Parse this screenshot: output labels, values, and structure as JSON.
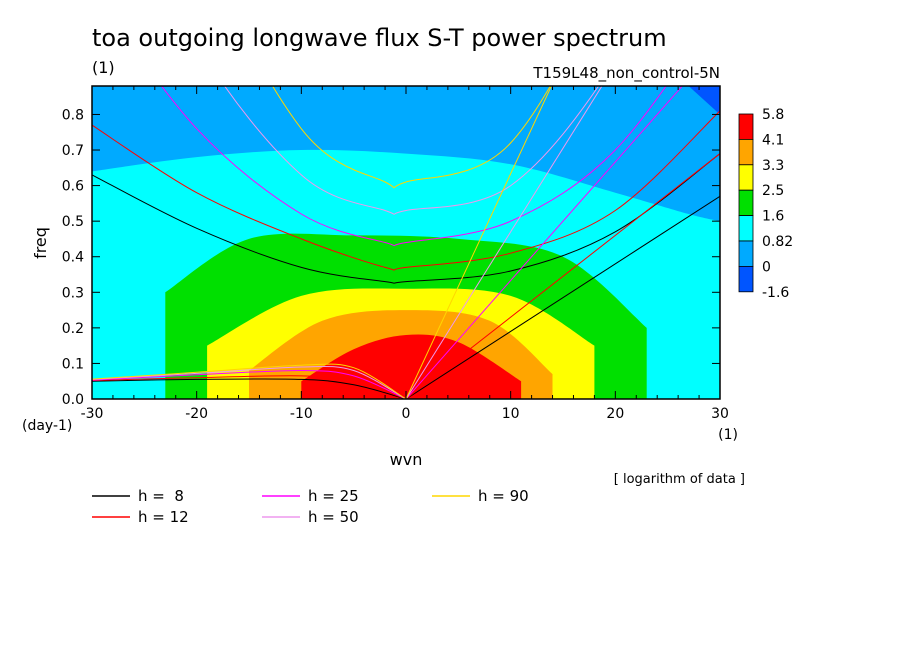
{
  "chart_data": {
    "type": "heatmap",
    "title": "toa outgoing longwave flux S-T power spectrum",
    "subtitle_left": "(1)",
    "subtitle_right": "T159L48_non_control-5N",
    "xlabel": "wvn",
    "ylabel": "freq",
    "x_unit": "(1)",
    "y_unit": "(day-1)",
    "note": "[ logarithm of data ]",
    "xlim": [
      -30,
      30
    ],
    "ylim": [
      0,
      0.88
    ],
    "x_ticks": [
      -30,
      -20,
      -10,
      0,
      10,
      20,
      30
    ],
    "y_ticks": [
      0.0,
      0.1,
      0.2,
      0.3,
      0.4,
      0.5,
      0.6,
      0.7,
      0.8
    ],
    "x_tick_labels": [
      "-30",
      "-20",
      "-10",
      "0",
      "10",
      "20",
      "30"
    ],
    "y_tick_labels": [
      "0.0",
      "0.1",
      "0.2",
      "0.3",
      "0.4",
      "0.5",
      "0.6",
      "0.7",
      "0.8"
    ],
    "colorbar": {
      "levels": [
        "5.8",
        "4.1",
        "3.3",
        "2.5",
        "1.6",
        "0.82",
        "0",
        "-1.6"
      ],
      "colors": [
        "#ff0000",
        "#ffa500",
        "#ffff00",
        "#00e000",
        "#00ffff",
        "#00aaff",
        "#0055ff"
      ]
    },
    "contour_bands": [
      {
        "level": ">0",
        "color": "#00aaff",
        "region": "background"
      },
      {
        "level": ">0.82",
        "color": "#00ffff",
        "x": [
          -30,
          -20,
          -10,
          0,
          10,
          20,
          27,
          30
        ],
        "y_top": [
          0.64,
          0.68,
          0.7,
          0.69,
          0.66,
          0.58,
          0.52,
          0.5
        ]
      },
      {
        "level": ">1.6",
        "color": "#00e000",
        "x": [
          -23,
          -15,
          -5,
          5,
          15,
          23
        ],
        "y_top": [
          0.3,
          0.45,
          0.46,
          0.45,
          0.4,
          0.2
        ]
      },
      {
        "level": ">2.5",
        "color": "#ffff00",
        "x": [
          -19,
          -10,
          0,
          10,
          18
        ],
        "y_top": [
          0.15,
          0.29,
          0.31,
          0.29,
          0.15
        ]
      },
      {
        "level": ">3.3",
        "color": "#ffa500",
        "x": [
          -15,
          -8,
          0,
          8,
          14
        ],
        "y_top": [
          0.08,
          0.22,
          0.25,
          0.22,
          0.07
        ]
      },
      {
        "level": ">4.1",
        "color": "#ff0000",
        "x": [
          -10,
          -5,
          0,
          5,
          11
        ],
        "y_top": [
          0.05,
          0.14,
          0.18,
          0.16,
          0.05
        ]
      },
      {
        "level": "<0",
        "color": "#0055ff",
        "region": "top-right corner"
      }
    ],
    "series": [
      {
        "name": "h =  8",
        "color": "#000000",
        "h": 8
      },
      {
        "name": "h = 12",
        "color": "#ff0000",
        "h": 12
      },
      {
        "name": "h = 25",
        "color": "#ff00ff",
        "h": 25
      },
      {
        "name": "h = 50",
        "color": "#ee99ee",
        "h": 50
      },
      {
        "name": "h = 90",
        "color": "#ffd700",
        "h": 90
      }
    ],
    "dispersion_curves": {
      "kelvin_x": [
        0,
        30
      ],
      "kelvin_y": {
        "8": [
          0,
          0.57
        ],
        "12": [
          0,
          0.69
        ],
        "25": [
          0,
          1.0
        ],
        "50": [
          0,
          1.41
        ],
        "90": [
          0,
          1.9
        ]
      },
      "ig_x": [
        -30,
        -20,
        -10,
        -2,
        0,
        10,
        20,
        30
      ],
      "ig_y": {
        "8": [
          0.63,
          0.48,
          0.37,
          0.33,
          0.33,
          0.36,
          0.47,
          0.69
        ],
        "12": [
          0.77,
          0.58,
          0.45,
          0.37,
          0.37,
          0.41,
          0.53,
          0.81
        ],
        "25": [
          1.15,
          0.76,
          0.52,
          0.44,
          0.44,
          0.5,
          0.7,
          1.1
        ],
        "50": [
          1.6,
          1.0,
          0.63,
          0.53,
          0.53,
          0.6,
          0.95,
          1.5
        ],
        "90": [
          2.1,
          1.3,
          0.76,
          0.61,
          0.61,
          0.72,
          1.25,
          2.0
        ]
      },
      "er_x": [
        -30,
        -20,
        -10,
        -5,
        0
      ],
      "er_y": {
        "8": [
          0.05,
          0.055,
          0.055,
          0.04,
          0
        ],
        "12": [
          0.052,
          0.06,
          0.065,
          0.05,
          0
        ],
        "25": [
          0.053,
          0.068,
          0.08,
          0.065,
          0
        ],
        "50": [
          0.055,
          0.072,
          0.09,
          0.08,
          0
        ],
        "90": [
          0.056,
          0.075,
          0.095,
          0.088,
          0
        ]
      }
    },
    "legend_placement": "bottom-left"
  }
}
